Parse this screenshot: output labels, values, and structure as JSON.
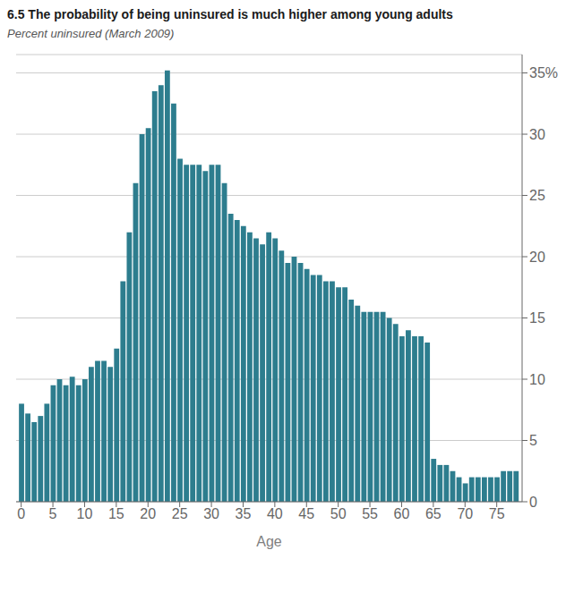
{
  "chart_data": {
    "type": "bar",
    "title": "6.5 The probability of being uninsured is much higher among young adults",
    "subtitle": "Percent uninsured (March 2009)",
    "xlabel": "Age",
    "color": "#2d7d8e",
    "grid": true,
    "x": [
      0,
      1,
      2,
      3,
      4,
      5,
      6,
      7,
      8,
      9,
      10,
      11,
      12,
      13,
      14,
      15,
      16,
      17,
      18,
      19,
      20,
      21,
      22,
      23,
      24,
      25,
      26,
      27,
      28,
      29,
      30,
      31,
      32,
      33,
      34,
      35,
      36,
      37,
      38,
      39,
      40,
      41,
      42,
      43,
      44,
      45,
      46,
      47,
      48,
      49,
      50,
      51,
      52,
      53,
      54,
      55,
      56,
      57,
      58,
      59,
      60,
      61,
      62,
      63,
      64,
      65,
      66,
      67,
      68,
      69,
      70,
      71,
      72,
      73,
      74,
      75,
      76,
      77,
      78
    ],
    "values": [
      8.0,
      7.2,
      6.5,
      7.0,
      8.0,
      9.5,
      10.0,
      9.5,
      10.2,
      9.5,
      10.0,
      11.0,
      11.5,
      11.5,
      11.0,
      12.5,
      18.0,
      22.0,
      26.0,
      30.0,
      30.5,
      33.5,
      34.0,
      35.2,
      32.5,
      28.0,
      27.5,
      27.5,
      27.5,
      27.0,
      27.5,
      27.5,
      26.0,
      23.5,
      23.0,
      22.5,
      22.0,
      21.5,
      21.0,
      22.0,
      21.5,
      20.5,
      19.5,
      20.0,
      19.5,
      19.0,
      18.5,
      18.5,
      18.0,
      18.0,
      17.5,
      17.5,
      16.5,
      16.0,
      15.5,
      15.5,
      15.5,
      15.5,
      15.0,
      14.5,
      13.5,
      14.0,
      13.5,
      13.5,
      13.0,
      3.5,
      3.0,
      3.0,
      2.5,
      2.0,
      1.5,
      2.0,
      2.0,
      2.0,
      2.0,
      2.0,
      2.5,
      2.5,
      2.5
    ],
    "xlim": [
      -0.8,
      79.0
    ],
    "xticks": [
      0,
      5,
      10,
      15,
      20,
      25,
      30,
      35,
      40,
      45,
      50,
      55,
      60,
      65,
      70,
      75
    ],
    "ylim": [
      0,
      36.5
    ],
    "yticks": [
      0,
      5,
      10,
      15,
      20,
      25,
      30,
      {
        "value": 35,
        "label": "35%"
      }
    ]
  }
}
